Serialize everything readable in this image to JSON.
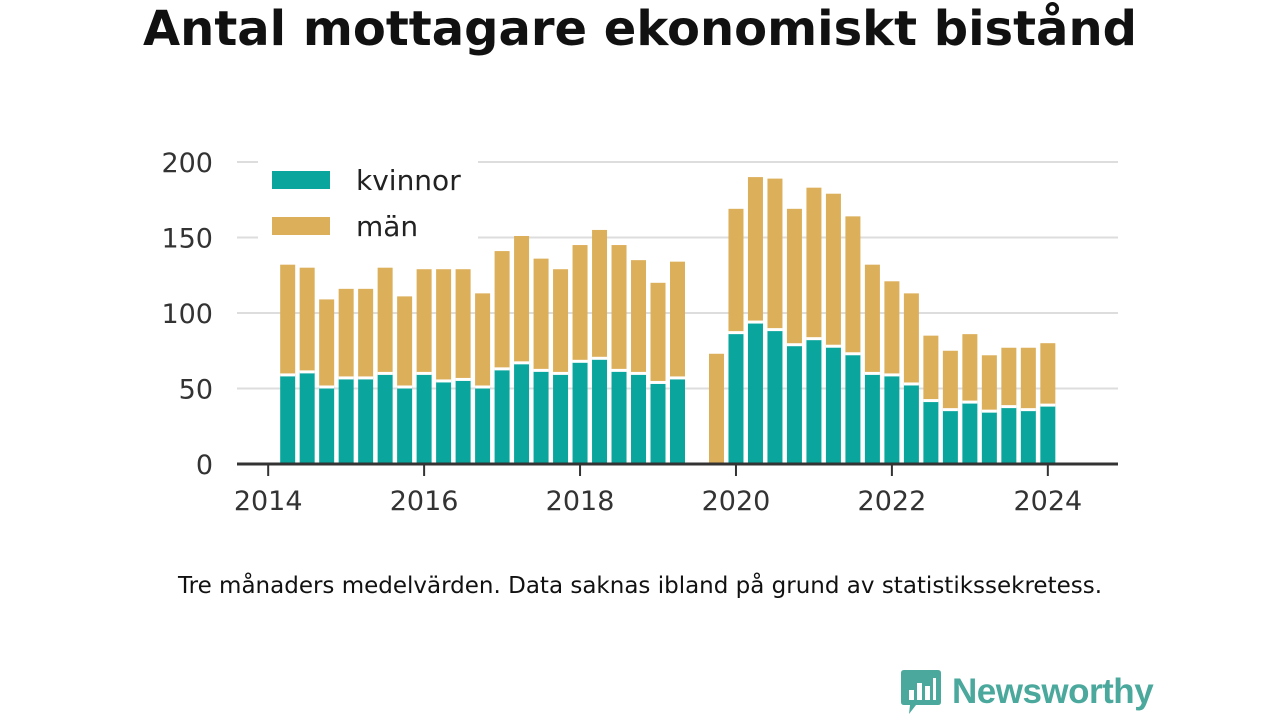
{
  "title": "Antal mottagare ekonomiskt bistånd",
  "footnote": "Tre månaders medelvärden. Data saknas ibland på grund av statistikssekretess.",
  "brand": {
    "name": "Newsworthy",
    "icon": "newsworthy-logo-icon",
    "color": "#4aa89c"
  },
  "colors": {
    "kvinnor": "#0aa69d",
    "man": "#dcaf5a",
    "grid": "#dddddd",
    "axis": "#333333"
  },
  "chart_data": {
    "type": "bar",
    "stacked": true,
    "legend_position": "top-left",
    "grid": true,
    "ylim": [
      0,
      200
    ],
    "yticks": [
      0,
      50,
      100,
      150,
      200
    ],
    "xlim": [
      2013.6,
      2024.9
    ],
    "xticks": [
      2014,
      2016,
      2018,
      2020,
      2022,
      2024
    ],
    "x": [
      2014.25,
      2014.5,
      2014.75,
      2015.0,
      2015.25,
      2015.5,
      2015.75,
      2016.0,
      2016.25,
      2016.5,
      2016.75,
      2017.0,
      2017.25,
      2017.5,
      2017.75,
      2018.0,
      2018.25,
      2018.5,
      2018.75,
      2019.0,
      2019.25,
      2019.75,
      2020.0,
      2020.25,
      2020.5,
      2020.75,
      2021.0,
      2021.25,
      2021.5,
      2021.75,
      2022.0,
      2022.25,
      2022.5,
      2022.75,
      2023.0,
      2023.25,
      2023.5,
      2023.75,
      2024.0
    ],
    "series": [
      {
        "name": "kvinnor",
        "values": [
          59,
          61,
          51,
          57,
          57,
          60,
          51,
          60,
          55,
          56,
          51,
          63,
          67,
          62,
          60,
          68,
          70,
          62,
          60,
          54,
          57,
          null,
          87,
          94,
          89,
          79,
          83,
          78,
          73,
          60,
          59,
          53,
          42,
          36,
          41,
          35,
          38,
          36,
          39
        ]
      },
      {
        "name": "män",
        "values": [
          73,
          69,
          58,
          59,
          59,
          70,
          60,
          69,
          74,
          73,
          62,
          78,
          84,
          74,
          69,
          77,
          85,
          83,
          75,
          66,
          77,
          73,
          82,
          96,
          100,
          90,
          100,
          101,
          91,
          72,
          62,
          60,
          43,
          39,
          45,
          37,
          39,
          41,
          41
        ]
      }
    ],
    "legend": [
      {
        "label": "kvinnor",
        "key": "kvinnor"
      },
      {
        "label": "män",
        "key": "man"
      }
    ]
  }
}
